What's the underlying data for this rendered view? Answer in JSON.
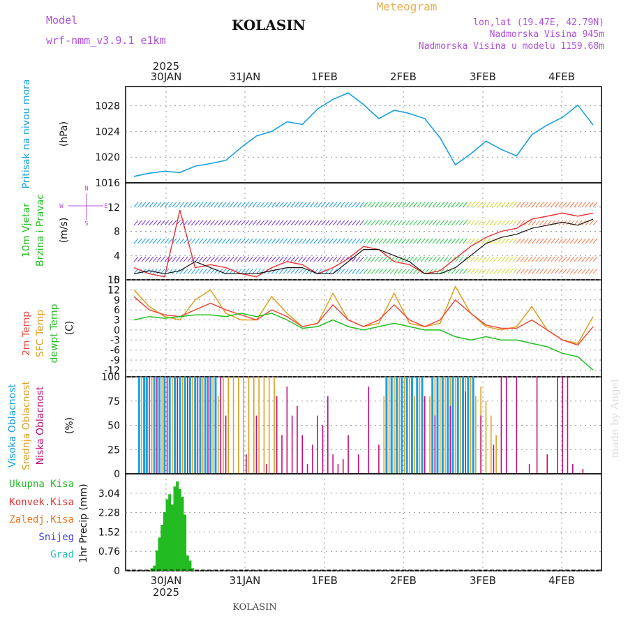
{
  "header": {
    "model_label": "Model",
    "model_name": "wrf-nmm_v3.9.1  e1km",
    "station": "KOLASIN",
    "product": "Meteogram",
    "lonlat": "lon,lat (19.47E, 42.79N)",
    "elevation": "Nadmorska Visina 945m",
    "model_elevation": "Nadmorska Visina u modelu 1159.68m",
    "footer_station": "KOLASIN",
    "watermark": "made by Angel"
  },
  "colors": {
    "pressure": "#1aa0e0",
    "wind_speed": "#e83030",
    "wind_gust": "#111111",
    "temp_2m": "#ee4a3a",
    "temp_sfc": "#e0a020",
    "dewpoint": "#20c020",
    "cloud_high": "#1aa0e0",
    "cloud_mid": "#e0a020",
    "cloud_low": "#c0107a",
    "precip_total": "#22bb22",
    "precip_conv": "#e83030",
    "precip_snow": "#4444ee",
    "precip_hail": "#22bbbb",
    "precip_ice": "#ee7722"
  },
  "chart_data": [
    {
      "type": "line",
      "panel": "pressure",
      "ylabel_left": "Pritisak na nivou mora",
      "unit": "(hPa)",
      "x_labels_top": [
        "30JAN",
        "31JAN",
        "1FEB",
        "2FEB",
        "3FEB",
        "4FEB"
      ],
      "x_year_top": "2025",
      "ylim": [
        1016,
        1031
      ],
      "yticks": [
        "1016",
        "1020",
        "1024",
        "1028"
      ],
      "series": [
        {
          "x": [
            0,
            6,
            12,
            18,
            24,
            30,
            36,
            42,
            48,
            54,
            60,
            66,
            72,
            78,
            84,
            90,
            96,
            102,
            108,
            114,
            120,
            126,
            132,
            138,
            144,
            150,
            156,
            162,
            168,
            174,
            180
          ],
          "values": [
            1017,
            1017.5,
            1017.8,
            1017.6,
            1018.6,
            1019,
            1019.5,
            1021.5,
            1023.3,
            1024,
            1025.5,
            1025.1,
            1027.5,
            1029,
            1030,
            1028.2,
            1026,
            1027.3,
            1026.8,
            1026,
            1023,
            1018.8,
            1020.5,
            1022.5,
            1021.2,
            1020.2,
            1023.5,
            1025,
            1026.2,
            1028.1,
            1025
          ]
        }
      ],
      "grid": true
    },
    {
      "type": "line",
      "panel": "wind",
      "ylabel_left": "10m Vjetar",
      "ylabel_left2": "Brzina i Pravac",
      "unit": "(m/s)",
      "direction_key": [
        "N",
        "W",
        "E",
        "S"
      ],
      "ylim": [
        0,
        16
      ],
      "yticks": [
        "0",
        "4",
        "8",
        "12"
      ],
      "series": [
        {
          "x": [
            0,
            6,
            12,
            18,
            24,
            30,
            36,
            42,
            48,
            54,
            60,
            66,
            72,
            78,
            84,
            90,
            96,
            102,
            108,
            114,
            120,
            126,
            132,
            138,
            144,
            150,
            156,
            162,
            168,
            174,
            180
          ],
          "values": [
            2,
            1,
            0.5,
            11.5,
            2,
            2.5,
            2,
            1,
            0.5,
            2,
            3,
            2.5,
            1,
            2,
            3.5,
            5.5,
            5,
            3,
            2.5,
            1,
            1.5,
            3.5,
            5.5,
            7,
            8,
            8.5,
            10,
            10.5,
            11,
            10.5,
            11
          ]
        },
        {
          "x": [
            0,
            6,
            12,
            18,
            24,
            30,
            36,
            42,
            48,
            54,
            60,
            66,
            72,
            78,
            84,
            90,
            96,
            102,
            108,
            114,
            120,
            126,
            132,
            138,
            144,
            150,
            156,
            162,
            168,
            174,
            180
          ],
          "values": [
            1,
            1.5,
            1,
            1.5,
            3,
            2,
            1,
            1,
            1,
            1.5,
            2,
            2,
            1,
            1,
            3,
            5,
            5,
            4,
            3,
            1,
            1,
            2,
            4,
            6,
            7,
            7.5,
            8.5,
            9,
            9.5,
            9,
            10
          ]
        }
      ],
      "grid": true
    },
    {
      "type": "line",
      "panel": "temperature",
      "ylabel_left": "2m Temp",
      "ylabel_left2": "SFC Temp",
      "ylabel_left3": "dewpt Temp",
      "unit": "(C)",
      "ylim": [
        -14,
        15
      ],
      "yticks": [
        "-12",
        "-9",
        "-6",
        "-3",
        "0",
        "3",
        "6",
        "9",
        "12",
        "15"
      ],
      "series": [
        {
          "x": [
            0,
            6,
            12,
            18,
            24,
            30,
            36,
            42,
            48,
            54,
            60,
            66,
            72,
            78,
            84,
            90,
            96,
            102,
            108,
            114,
            120,
            126,
            132,
            138,
            144,
            150,
            156,
            162,
            168,
            174,
            180
          ],
          "values": [
            10,
            6,
            4.5,
            4,
            6,
            8,
            6,
            4.5,
            3,
            6,
            4,
            1,
            2,
            7.5,
            3,
            1,
            3,
            7.5,
            3,
            1,
            3,
            9,
            5,
            1.5,
            0.5,
            0.5,
            3,
            0,
            -3,
            -4.5,
            1
          ]
        },
        {
          "x": [
            0,
            6,
            12,
            18,
            24,
            30,
            36,
            42,
            48,
            54,
            60,
            66,
            72,
            78,
            84,
            90,
            96,
            102,
            108,
            114,
            120,
            126,
            132,
            138,
            144,
            150,
            156,
            162,
            168,
            174,
            180
          ],
          "values": [
            12,
            7,
            4,
            3,
            9,
            12,
            5,
            3,
            3,
            10,
            5,
            1,
            2,
            11,
            3,
            1,
            2,
            11,
            2,
            1,
            2,
            13,
            5,
            1,
            0,
            1,
            7,
            0,
            -3,
            -4,
            4
          ]
        },
        {
          "x": [
            0,
            6,
            12,
            18,
            24,
            30,
            36,
            42,
            48,
            54,
            60,
            66,
            72,
            78,
            84,
            90,
            96,
            102,
            108,
            114,
            120,
            126,
            132,
            138,
            144,
            150,
            156,
            162,
            168,
            174,
            180
          ],
          "values": [
            3,
            4,
            3.5,
            4,
            4.5,
            4.5,
            4,
            5,
            4,
            5,
            3,
            0.5,
            1,
            3,
            1,
            0,
            1,
            2,
            1,
            0,
            0,
            -2,
            -3,
            -2,
            -3,
            -3,
            -4,
            -5,
            -7,
            -8,
            -12
          ]
        }
      ],
      "grid": true
    },
    {
      "type": "bar",
      "panel": "cloud",
      "ylabel_left": "Visoka Oblacnost",
      "ylabel_left2": "Srednja Oblacnost",
      "ylabel_left3": "Niska Oblacnost",
      "unit": "(%)",
      "ylim": [
        0,
        100
      ],
      "yticks": [
        "0",
        "25",
        "50",
        "75",
        "100"
      ],
      "series": [
        {
          "name": "high",
          "x": [
            2,
            4,
            5,
            8,
            10,
            12,
            14,
            16,
            18,
            20,
            22,
            24,
            26,
            28,
            30,
            32,
            99,
            101,
            103,
            105,
            107,
            109,
            111,
            113,
            117,
            119,
            121,
            123,
            125,
            127,
            129,
            131,
            133
          ],
          "values": [
            100,
            100,
            100,
            100,
            100,
            100,
            100,
            100,
            100,
            100,
            100,
            100,
            100,
            100,
            100,
            100,
            100,
            100,
            100,
            100,
            100,
            100,
            100,
            100,
            100,
            100,
            100,
            100,
            100,
            100,
            100,
            100,
            100
          ]
        },
        {
          "name": "mid",
          "x": [
            3,
            7,
            11,
            15,
            19,
            23,
            27,
            31,
            33,
            35,
            37,
            39,
            41,
            43,
            45,
            47,
            49,
            51,
            53,
            55,
            98,
            100,
            102,
            104,
            106,
            108,
            110,
            112,
            116,
            118,
            120,
            122,
            124,
            126,
            128,
            130,
            132,
            134,
            136,
            138,
            140,
            142
          ],
          "values": [
            100,
            100,
            100,
            100,
            100,
            100,
            100,
            100,
            80,
            100,
            100,
            100,
            100,
            100,
            100,
            100,
            100,
            100,
            100,
            100,
            80,
            100,
            100,
            100,
            100,
            100,
            80,
            100,
            80,
            100,
            100,
            100,
            100,
            100,
            100,
            100,
            100,
            80,
            90,
            75,
            60,
            40
          ]
        },
        {
          "name": "low",
          "x": [
            6,
            9,
            13,
            17,
            21,
            25,
            29,
            34,
            36,
            44,
            48,
            52,
            56,
            58,
            60,
            62,
            64,
            66,
            68,
            70,
            72,
            74,
            76,
            78,
            80,
            82,
            84,
            88,
            92,
            96,
            114,
            118,
            124,
            130,
            136,
            141,
            144,
            146,
            150,
            155,
            158,
            162,
            166,
            168,
            170,
            172,
            176
          ],
          "values": [
            100,
            100,
            100,
            100,
            100,
            100,
            100,
            100,
            60,
            20,
            60,
            10,
            80,
            40,
            90,
            60,
            70,
            40,
            10,
            30,
            60,
            50,
            80,
            20,
            10,
            15,
            40,
            20,
            90,
            30,
            80,
            60,
            70,
            85,
            60,
            30,
            100,
            100,
            100,
            10,
            100,
            20,
            100,
            100,
            100,
            10,
            5
          ]
        }
      ],
      "grid": true
    },
    {
      "type": "bar",
      "panel": "precip",
      "legend": [
        "Ukupna Kisa",
        "Konvek.Kisa",
        "Zaledj.Kisa",
        "Snijeg",
        "Grad"
      ],
      "unit": "1hr Precip (mm)",
      "ylim": [
        0,
        3.8
      ],
      "yticks": [
        "0",
        "0.76",
        "1.52",
        "2.28",
        "3.04"
      ],
      "x_labels_bottom": [
        "30JAN",
        "31JAN",
        "1FEB",
        "2FEB",
        "3FEB",
        "4FEB"
      ],
      "x_year_bottom": "2025",
      "series": [
        {
          "x": [
            7,
            8,
            9,
            10,
            11,
            12,
            13,
            14,
            15,
            16,
            17,
            18,
            19,
            20,
            21,
            22,
            23
          ],
          "values": [
            0.1,
            0.2,
            0.8,
            1.3,
            1.8,
            2.3,
            2.8,
            3.0,
            2.6,
            3.3,
            3.5,
            3.2,
            2.9,
            2.2,
            0.6,
            0.4,
            0.1
          ]
        }
      ],
      "grid": true
    }
  ]
}
